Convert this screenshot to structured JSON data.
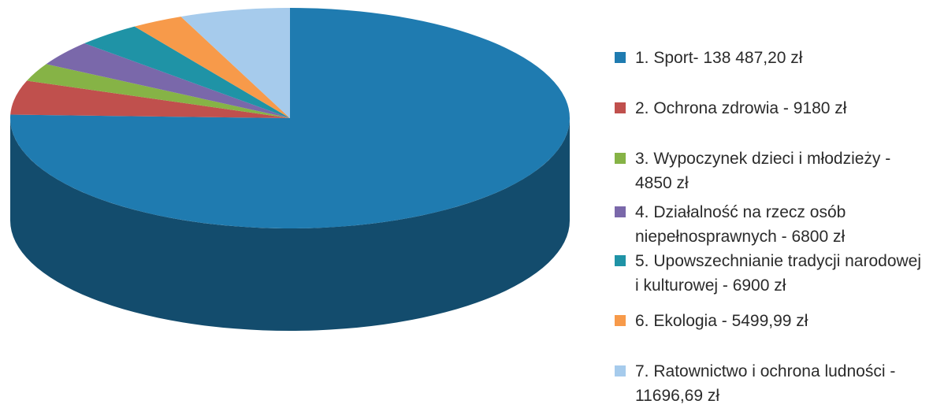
{
  "chart_data": {
    "type": "pie",
    "style": "3d",
    "legend_position": "right",
    "slices": [
      {
        "label": "1. Sport- 138 487,20 zł",
        "value": 138487.2,
        "color": "#1f7bb0"
      },
      {
        "label": "2. Ochrona zdrowia - 9180 zł",
        "value": 9180,
        "color": "#c0504d"
      },
      {
        "label": "3. Wypoczynek dzieci i młodzieży - 4850 zł",
        "value": 4850,
        "color": "#86b346"
      },
      {
        "label": "4. Działalność na rzecz osób niepełnosprawnych - 6800 zł",
        "value": 6800,
        "color": "#7a68aa"
      },
      {
        "label": "5. Upowszechnianie tradycji narodowej i kulturowej - 6900 zł",
        "value": 6900,
        "color": "#1f93a6"
      },
      {
        "label": "6. Ekologia - 5499,99 zł",
        "value": 5499.99,
        "color": "#f79a4a"
      },
      {
        "label": "7. Ratownictwo i ochrona ludności - 11696,69 zł",
        "value": 11696.69,
        "color": "#a6cbec"
      }
    ]
  }
}
